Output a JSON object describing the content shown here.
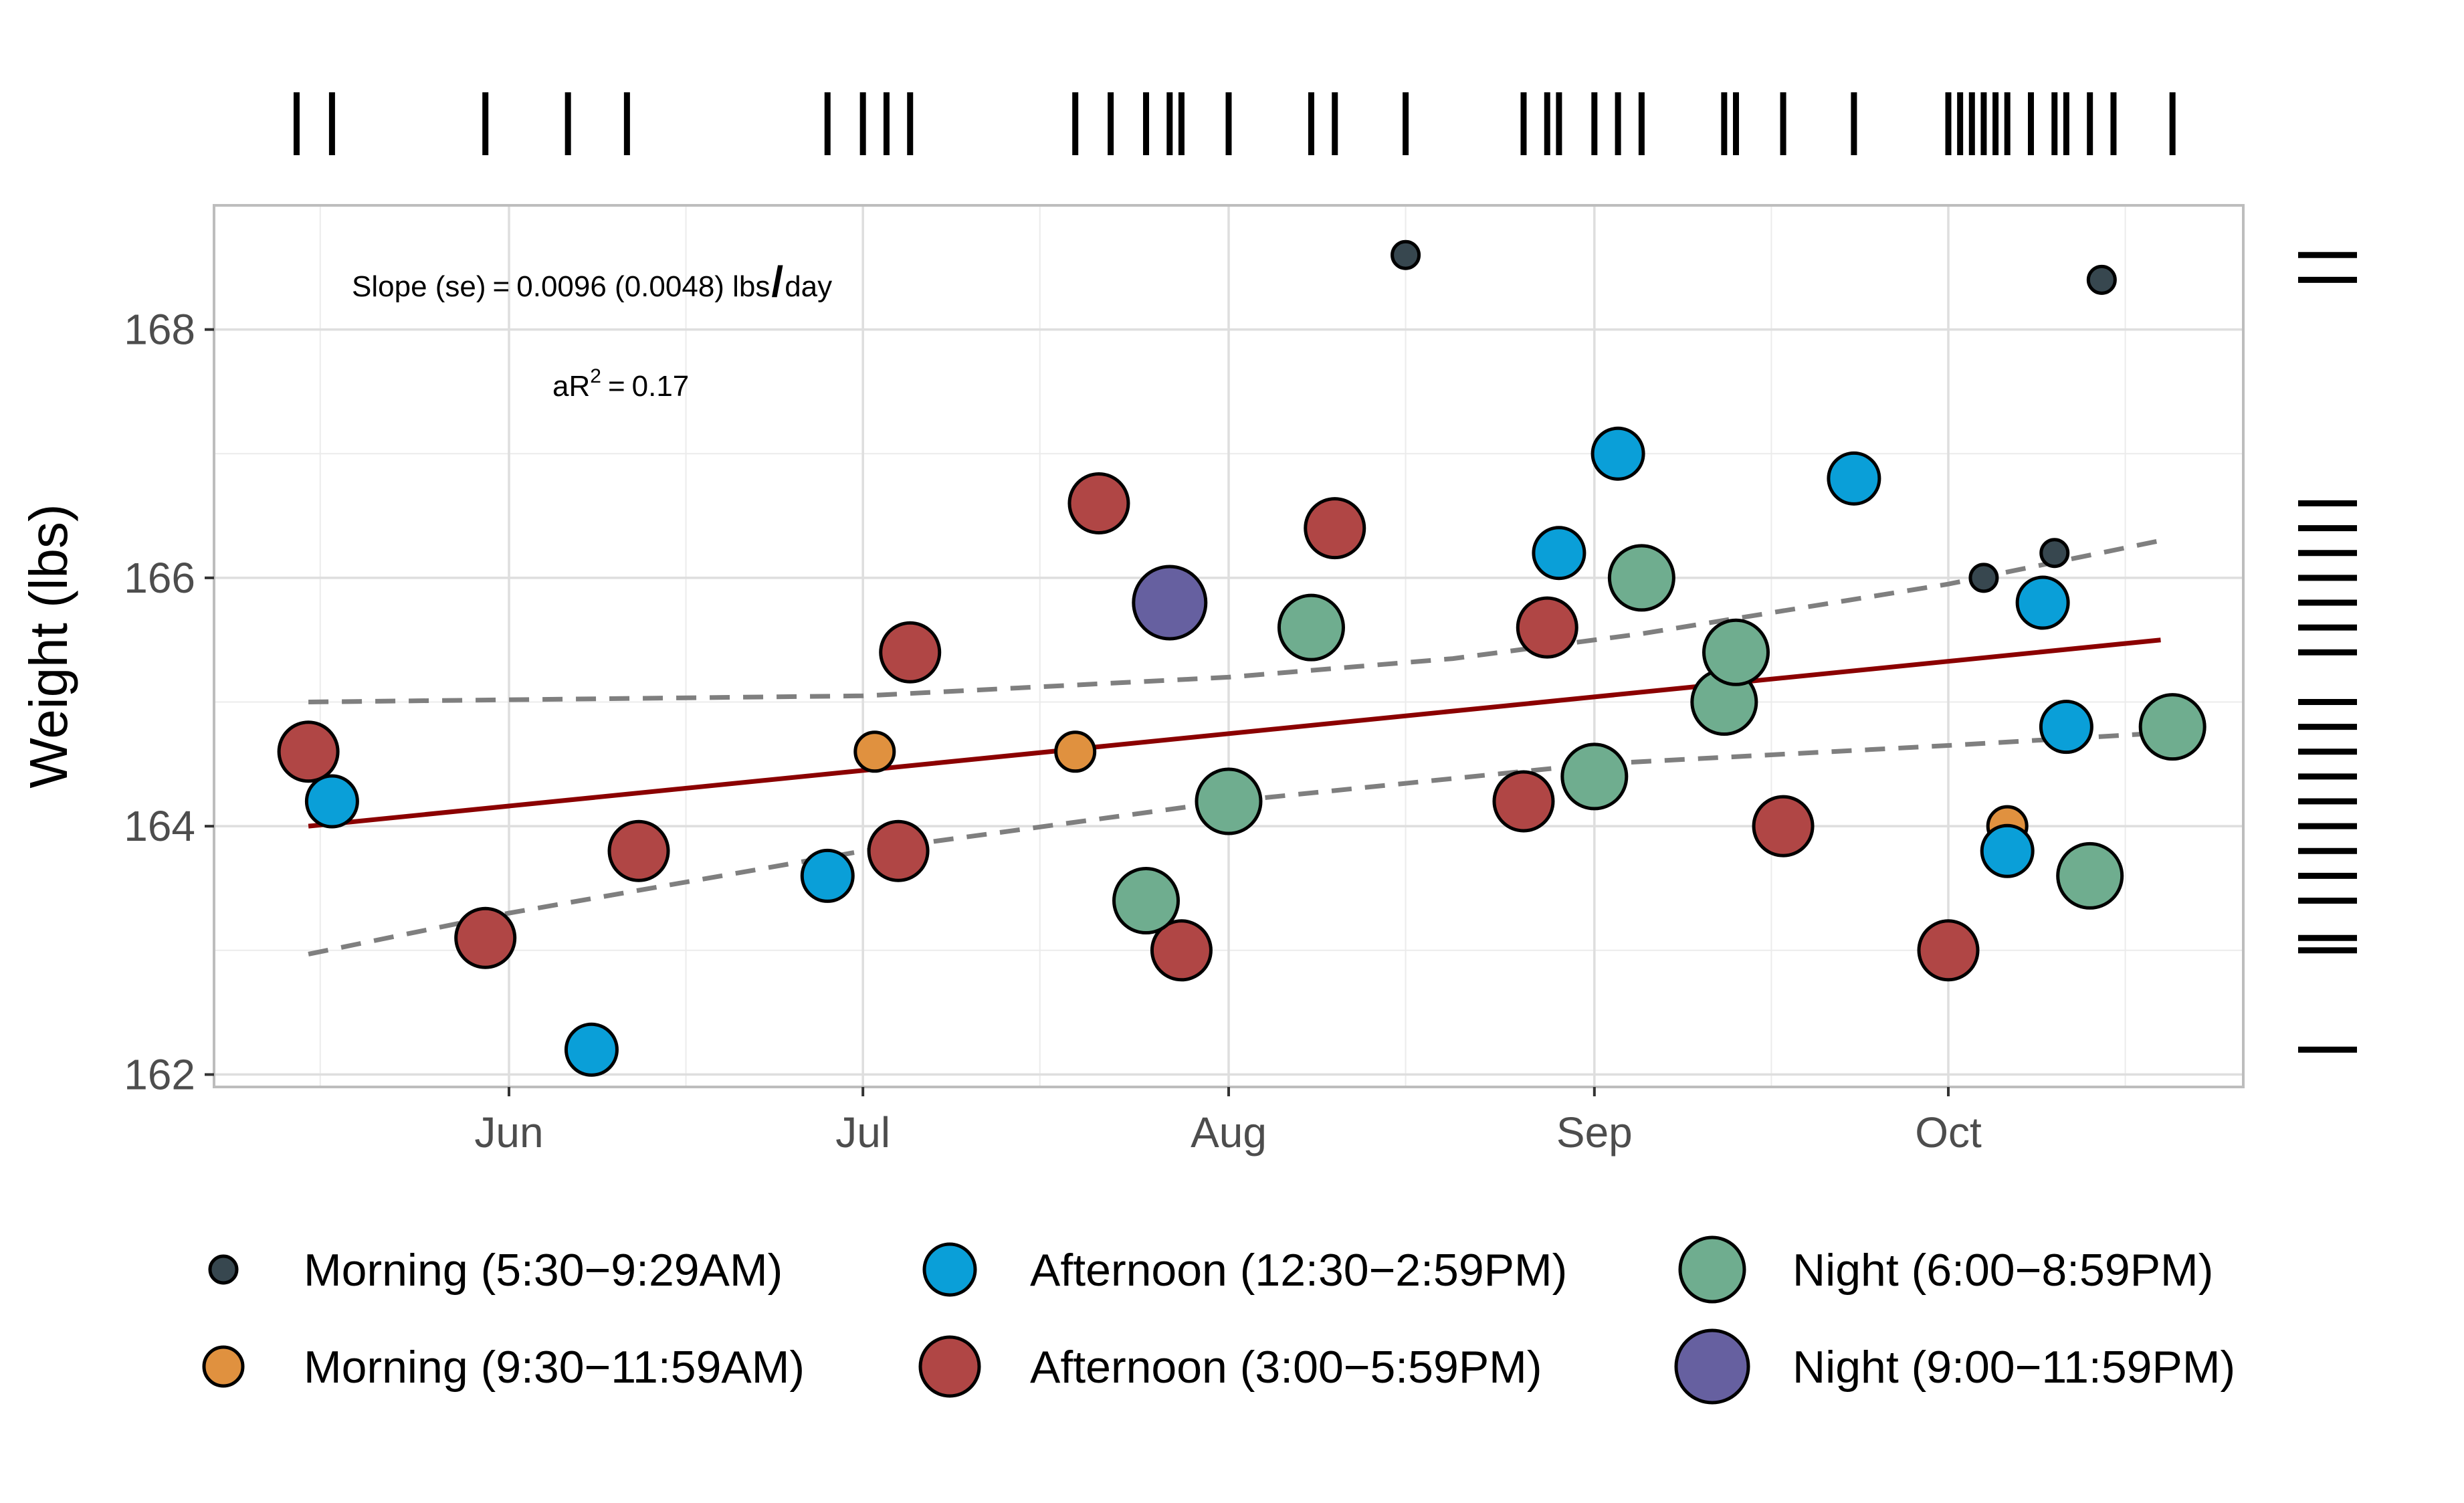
{
  "chart_data": {
    "type": "scatter",
    "title": "",
    "xlabel": "",
    "ylabel": "Weight (lbs)",
    "ylim": [
      161.9,
      169.0
    ],
    "xlim": [
      "2023-05-07",
      "2023-10-26"
    ],
    "x_ticks": [
      "Jun",
      "Jul",
      "Aug",
      "Sep",
      "Oct"
    ],
    "y_ticks": [
      "162",
      "164",
      "166",
      "168"
    ],
    "grid": true,
    "legend_position": "bottom",
    "annotations": {
      "slope_prefix": "Slope (se)",
      "slope_eq": "=",
      "slope_value": "0.0096 (0.0048) lbs",
      "slope_slash": "/",
      "slope_unit": "day",
      "r2_prefix": "aR",
      "r2_sup": "2",
      "r2_eq": "=",
      "r2_value": "0.17"
    },
    "series": [
      {
        "name": "Morning (5:30−9:29AM)",
        "color": "#37474F",
        "size": "small",
        "points": [
          {
            "x": "2023-08-16",
            "y": 168.6
          },
          {
            "x": "2023-10-04",
            "y": 166.0
          },
          {
            "x": "2023-10-10",
            "y": 166.2
          },
          {
            "x": "2023-10-14",
            "y": 168.4
          }
        ]
      },
      {
        "name": "Morning (9:30−11:59AM)",
        "color": "#E0913F",
        "size": "medium-small",
        "points": [
          {
            "x": "2023-07-02",
            "y": 164.6
          },
          {
            "x": "2023-07-19",
            "y": 164.6
          },
          {
            "x": "2023-10-06",
            "y": 164.0
          }
        ]
      },
      {
        "name": "Afternoon (12:30−2:59PM)",
        "color": "#0A9FD8",
        "size": "medium",
        "points": [
          {
            "x": "2023-05-17",
            "y": 164.2
          },
          {
            "x": "2023-06-08",
            "y": 162.2
          },
          {
            "x": "2023-06-28",
            "y": 163.6
          },
          {
            "x": "2023-08-29",
            "y": 166.2
          },
          {
            "x": "2023-09-03",
            "y": 167.0
          },
          {
            "x": "2023-09-23",
            "y": 166.8
          },
          {
            "x": "2023-10-06",
            "y": 163.8
          },
          {
            "x": "2023-10-09",
            "y": 165.8
          },
          {
            "x": "2023-10-11",
            "y": 164.8
          }
        ]
      },
      {
        "name": "Afternoon (3:00−5:59PM)",
        "color": "#B04645",
        "size": "medium-large",
        "points": [
          {
            "x": "2023-05-15",
            "y": 164.6
          },
          {
            "x": "2023-05-30",
            "y": 163.1
          },
          {
            "x": "2023-06-12",
            "y": 163.8
          },
          {
            "x": "2023-07-05",
            "y": 165.4
          },
          {
            "x": "2023-07-04",
            "y": 163.8
          },
          {
            "x": "2023-07-21",
            "y": 166.6
          },
          {
            "x": "2023-07-28",
            "y": 163.0
          },
          {
            "x": "2023-08-10",
            "y": 166.4
          },
          {
            "x": "2023-08-26",
            "y": 164.2
          },
          {
            "x": "2023-08-28",
            "y": 165.6
          },
          {
            "x": "2023-09-17",
            "y": 164.0
          },
          {
            "x": "2023-10-01",
            "y": 163.0
          }
        ]
      },
      {
        "name": "Night (6:00−8:59PM)",
        "color": "#6FAD8F",
        "size": "large",
        "points": [
          {
            "x": "2023-07-25",
            "y": 163.4
          },
          {
            "x": "2023-08-01",
            "y": 164.2
          },
          {
            "x": "2023-08-08",
            "y": 165.6
          },
          {
            "x": "2023-09-01",
            "y": 164.4
          },
          {
            "x": "2023-09-05",
            "y": 166.0
          },
          {
            "x": "2023-09-12",
            "y": 165.0
          },
          {
            "x": "2023-09-13",
            "y": 165.4
          },
          {
            "x": "2023-10-13",
            "y": 163.6
          },
          {
            "x": "2023-10-20",
            "y": 164.8
          }
        ]
      },
      {
        "name": "Night (9:00−11:59PM)",
        "color": "#6660A0",
        "size": "largest",
        "points": [
          {
            "x": "2023-07-27",
            "y": 165.8
          }
        ]
      }
    ],
    "trend": {
      "color": "#8B0000",
      "x": [
        "2023-05-15",
        "2023-10-19"
      ],
      "y": [
        164.0,
        165.5
      ]
    },
    "confidence_band": {
      "color": "#7F7F7F",
      "upper": [
        {
          "x": "2023-05-15",
          "y": 165.0
        },
        {
          "x": "2023-07-01",
          "y": 165.05
        },
        {
          "x": "2023-08-01",
          "y": 165.2
        },
        {
          "x": "2023-08-20",
          "y": 165.35
        },
        {
          "x": "2023-09-05",
          "y": 165.55
        },
        {
          "x": "2023-10-01",
          "y": 165.95
        },
        {
          "x": "2023-10-19",
          "y": 166.3
        }
      ],
      "lower": [
        {
          "x": "2023-05-15",
          "y": 162.97
        },
        {
          "x": "2023-06-01",
          "y": 163.3
        },
        {
          "x": "2023-07-01",
          "y": 163.8
        },
        {
          "x": "2023-08-01",
          "y": 164.2
        },
        {
          "x": "2023-09-01",
          "y": 164.5
        },
        {
          "x": "2023-10-01",
          "y": 164.65
        },
        {
          "x": "2023-10-19",
          "y": 164.75
        }
      ]
    },
    "rug_x": [
      "2023-05-14",
      "2023-05-17",
      "2023-05-30",
      "2023-06-06",
      "2023-06-11",
      "2023-06-28",
      "2023-07-01",
      "2023-07-03",
      "2023-07-05",
      "2023-07-19",
      "2023-07-22",
      "2023-07-25",
      "2023-07-27",
      "2023-07-28",
      "2023-08-01",
      "2023-08-08",
      "2023-08-10",
      "2023-08-16",
      "2023-08-26",
      "2023-08-28",
      "2023-08-29",
      "2023-09-01",
      "2023-09-03",
      "2023-09-05",
      "2023-09-12",
      "2023-09-13",
      "2023-09-17",
      "2023-09-23",
      "2023-10-01",
      "2023-10-02",
      "2023-10-03",
      "2023-10-04",
      "2023-10-05",
      "2023-10-06",
      "2023-10-08",
      "2023-10-10",
      "2023-10-11",
      "2023-10-13",
      "2023-10-15",
      "2023-10-20"
    ],
    "rug_y": [
      168.6,
      168.4,
      166.6,
      166.4,
      166.2,
      166.0,
      165.8,
      165.6,
      165.4,
      165.0,
      164.8,
      164.6,
      164.4,
      164.2,
      164.0,
      163.8,
      163.6,
      163.4,
      163.1,
      163.0,
      162.2
    ]
  }
}
